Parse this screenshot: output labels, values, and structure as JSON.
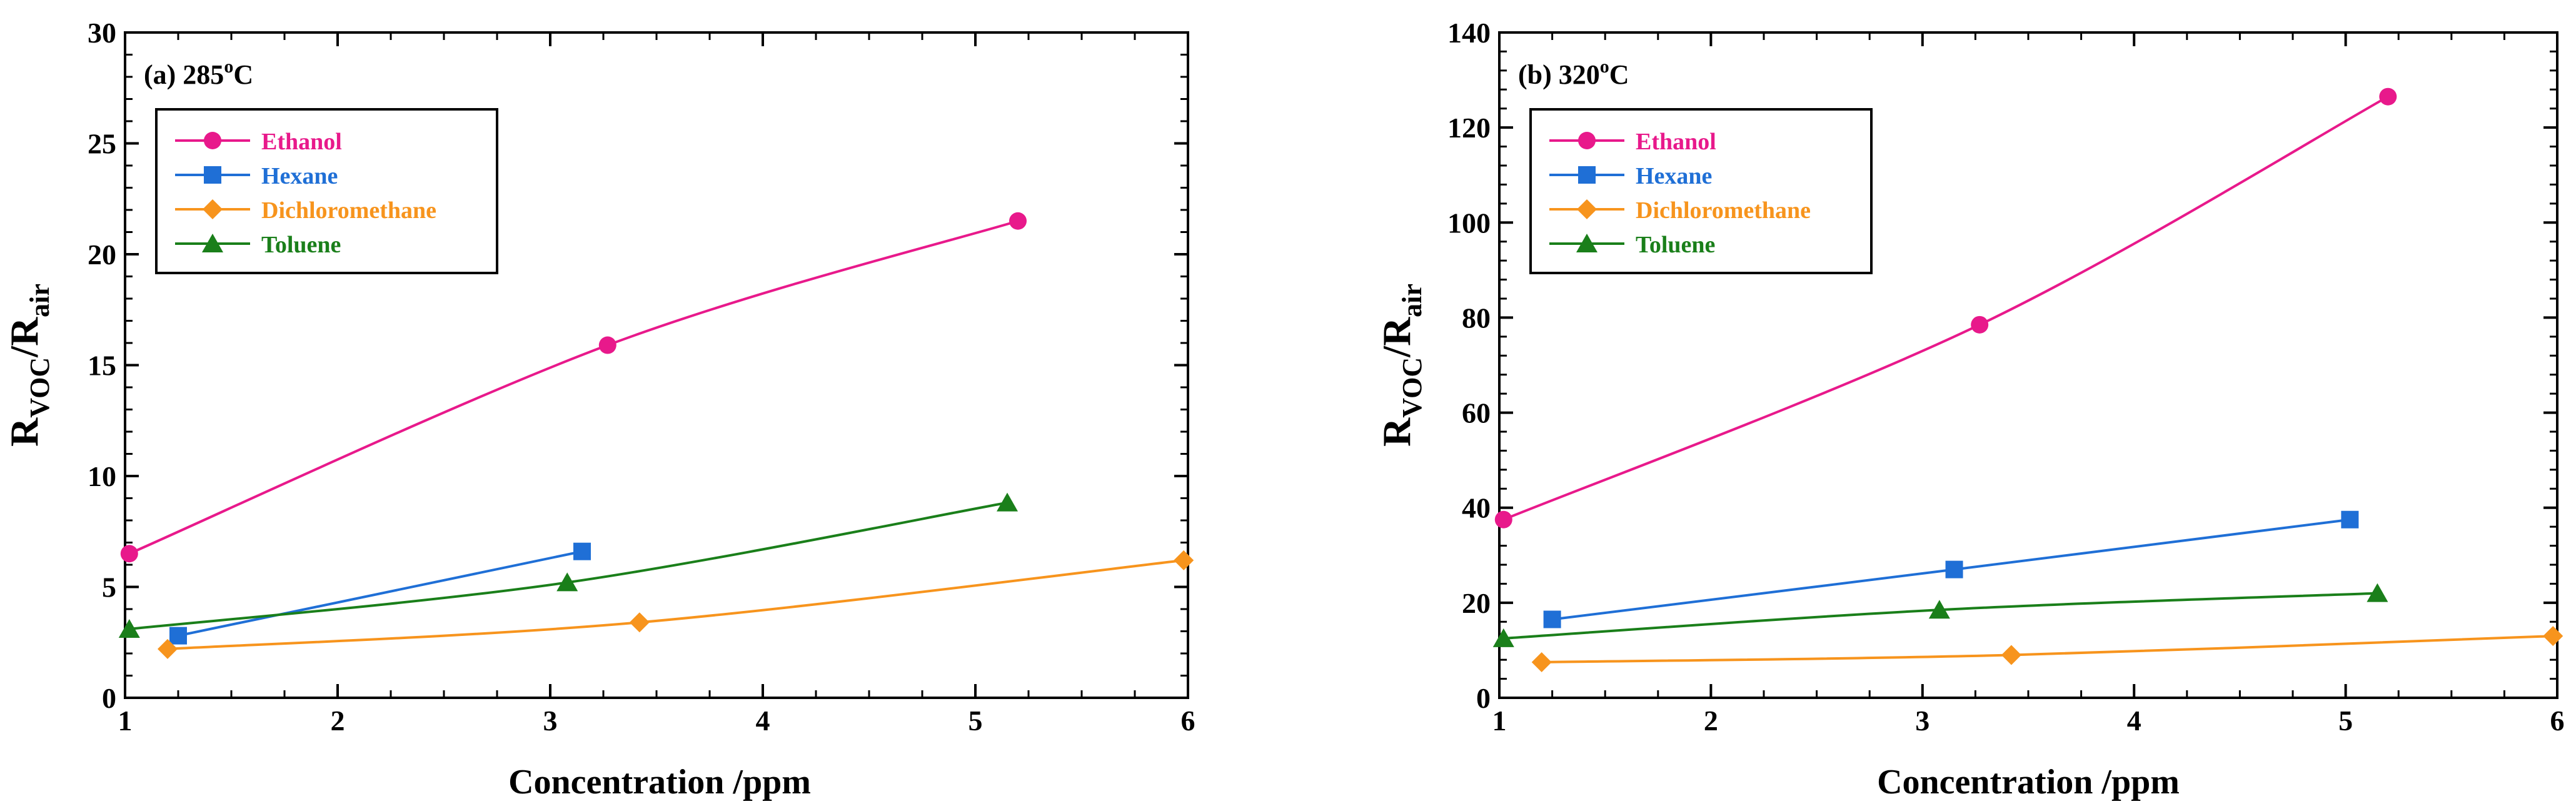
{
  "chart_data": [
    {
      "type": "line",
      "panel_label": "(a) 285",
      "panel_label_sup": "o",
      "panel_label_unit": "C",
      "xlabel": "Concentration /ppm",
      "ylabel_main": "R",
      "ylabel_sub1": "VOC",
      "ylabel_mid": "/R",
      "ylabel_sub2": "air",
      "xlim": [
        1,
        6
      ],
      "ylim": [
        0,
        30
      ],
      "xticks": [
        "1",
        "2",
        "3",
        "4",
        "5",
        "6"
      ],
      "yticks": [
        "0",
        "5",
        "10",
        "15",
        "20",
        "25",
        "30"
      ],
      "legend_position": "top-left",
      "series": [
        {
          "name": "Ethanol",
          "color": "#e8198b",
          "marker": "circle",
          "x": [
            1.02,
            3.27,
            5.2
          ],
          "y": [
            6.5,
            15.9,
            21.5
          ]
        },
        {
          "name": "Hexane",
          "color": "#1f6fd6",
          "marker": "square",
          "x": [
            1.25,
            3.15
          ],
          "y": [
            2.8,
            6.6
          ]
        },
        {
          "name": "Dichloromethane",
          "color": "#f7941d",
          "marker": "diamond",
          "x": [
            1.2,
            3.42,
            5.98
          ],
          "y": [
            2.2,
            3.4,
            6.2
          ]
        },
        {
          "name": "Toluene",
          "color": "#1a7f1a",
          "marker": "triangle",
          "x": [
            1.02,
            3.08,
            5.15
          ],
          "y": [
            3.1,
            5.2,
            8.8
          ]
        }
      ]
    },
    {
      "type": "line",
      "panel_label": "(b) 320",
      "panel_label_sup": "o",
      "panel_label_unit": "C",
      "xlabel": "Concentration /ppm",
      "ylabel_main": "R",
      "ylabel_sub1": "VOC",
      "ylabel_mid": "/R",
      "ylabel_sub2": "air",
      "xlim": [
        1,
        6
      ],
      "ylim": [
        0,
        140
      ],
      "xticks": [
        "1",
        "2",
        "3",
        "4",
        "5",
        "6"
      ],
      "yticks": [
        "0",
        "20",
        "40",
        "60",
        "80",
        "100",
        "120",
        "140"
      ],
      "legend_position": "top-left",
      "series": [
        {
          "name": "Ethanol",
          "color": "#e8198b",
          "marker": "circle",
          "x": [
            1.02,
            3.27,
            5.2
          ],
          "y": [
            37.5,
            78.5,
            126.5
          ]
        },
        {
          "name": "Hexane",
          "color": "#1f6fd6",
          "marker": "square",
          "x": [
            1.25,
            3.15,
            5.02
          ],
          "y": [
            16.5,
            27.0,
            37.5
          ]
        },
        {
          "name": "Dichloromethane",
          "color": "#f7941d",
          "marker": "diamond",
          "x": [
            1.2,
            3.42,
            5.98
          ],
          "y": [
            7.5,
            9.0,
            13.0
          ]
        },
        {
          "name": "Toluene",
          "color": "#1a7f1a",
          "marker": "triangle",
          "x": [
            1.02,
            3.08,
            5.15
          ],
          "y": [
            12.5,
            18.5,
            22.0
          ]
        }
      ]
    }
  ]
}
